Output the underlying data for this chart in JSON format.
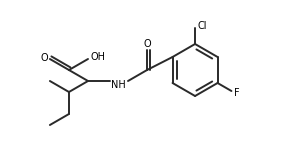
{
  "background": "#ffffff",
  "line_color": "#2a2a2a",
  "line_width": 1.4,
  "text_color": "#000000",
  "font_size": 7.0,
  "figsize": [
    2.86,
    1.56
  ],
  "dpi": 100,
  "xlim": [
    0,
    286
  ],
  "ylim": [
    0,
    156
  ]
}
